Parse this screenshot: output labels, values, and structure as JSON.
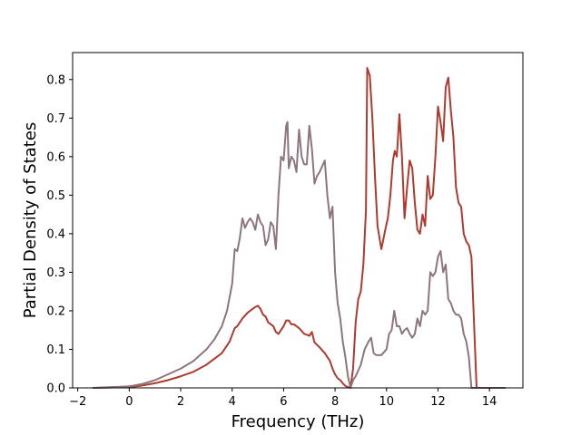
{
  "chart_data": {
    "type": "line",
    "title": "",
    "xlabel": "Frequency (THz)",
    "ylabel": "Partial Density of States",
    "xlim": [
      -2.2,
      15.3
    ],
    "ylim": [
      0.0,
      0.87
    ],
    "xticks": [
      -2,
      0,
      2,
      4,
      6,
      8,
      10,
      12,
      14
    ],
    "yticks": [
      0.0,
      0.1,
      0.2,
      0.3,
      0.4,
      0.5,
      0.6,
      0.7,
      0.8
    ],
    "grid": false,
    "legend": "none",
    "series": [
      {
        "color": "#b03a2e",
        "x": [
          -1.4,
          0.0,
          0.5,
          1.0,
          1.5,
          2.0,
          2.5,
          3.0,
          3.3,
          3.6,
          3.9,
          4.1,
          4.2,
          4.4,
          4.6,
          4.8,
          4.9,
          5.0,
          5.1,
          5.2,
          5.3,
          5.4,
          5.5,
          5.6,
          5.7,
          5.8,
          5.9,
          6.0,
          6.1,
          6.2,
          6.3,
          6.4,
          6.5,
          6.6,
          6.7,
          6.8,
          6.9,
          7.0,
          7.1,
          7.2,
          7.4,
          7.6,
          7.8,
          7.9,
          8.0,
          8.1,
          8.2,
          8.3,
          8.4,
          8.5,
          8.6,
          8.7,
          8.8,
          8.9,
          9.0,
          9.1,
          9.2,
          9.25,
          9.35,
          9.45,
          9.55,
          9.65,
          9.8,
          9.95,
          10.05,
          10.15,
          10.25,
          10.32,
          10.4,
          10.5,
          10.6,
          10.7,
          10.8,
          10.9,
          11.0,
          11.1,
          11.2,
          11.3,
          11.4,
          11.5,
          11.6,
          11.7,
          11.8,
          11.9,
          12.0,
          12.1,
          12.2,
          12.3,
          12.4,
          12.5,
          12.6,
          12.7,
          12.8,
          12.9,
          13.0,
          13.1,
          13.2,
          13.3,
          13.5,
          14.0,
          14.6
        ],
        "y": [
          0.0,
          0.002,
          0.006,
          0.012,
          0.02,
          0.03,
          0.042,
          0.06,
          0.075,
          0.09,
          0.12,
          0.155,
          0.16,
          0.18,
          0.195,
          0.205,
          0.21,
          0.213,
          0.205,
          0.19,
          0.185,
          0.17,
          0.165,
          0.16,
          0.145,
          0.14,
          0.15,
          0.16,
          0.175,
          0.175,
          0.165,
          0.165,
          0.16,
          0.155,
          0.148,
          0.14,
          0.138,
          0.135,
          0.145,
          0.118,
          0.105,
          0.09,
          0.07,
          0.05,
          0.035,
          0.025,
          0.02,
          0.012,
          0.005,
          0.002,
          0.0,
          0.05,
          0.17,
          0.23,
          0.25,
          0.32,
          0.46,
          0.83,
          0.81,
          0.7,
          0.55,
          0.42,
          0.36,
          0.41,
          0.44,
          0.5,
          0.59,
          0.615,
          0.6,
          0.71,
          0.6,
          0.44,
          0.52,
          0.59,
          0.57,
          0.48,
          0.41,
          0.4,
          0.45,
          0.42,
          0.55,
          0.49,
          0.5,
          0.6,
          0.73,
          0.69,
          0.64,
          0.78,
          0.805,
          0.72,
          0.65,
          0.52,
          0.48,
          0.47,
          0.4,
          0.38,
          0.37,
          0.34,
          0.0,
          0.0,
          0.0
        ]
      },
      {
        "color": "#8d7580",
        "x": [
          -1.4,
          0.0,
          0.5,
          1.0,
          1.5,
          2.0,
          2.5,
          3.0,
          3.3,
          3.6,
          3.8,
          4.0,
          4.1,
          4.2,
          4.3,
          4.4,
          4.5,
          4.6,
          4.7,
          4.8,
          4.9,
          5.0,
          5.1,
          5.2,
          5.3,
          5.4,
          5.5,
          5.6,
          5.7,
          5.8,
          5.9,
          6.0,
          6.1,
          6.15,
          6.2,
          6.3,
          6.4,
          6.5,
          6.6,
          6.7,
          6.8,
          6.9,
          7.0,
          7.1,
          7.2,
          7.3,
          7.4,
          7.6,
          7.7,
          7.8,
          7.9,
          8.0,
          8.1,
          8.2,
          8.3,
          8.4,
          8.5,
          8.6,
          8.7,
          8.8,
          9.0,
          9.15,
          9.3,
          9.4,
          9.5,
          9.6,
          9.8,
          10.0,
          10.1,
          10.2,
          10.3,
          10.4,
          10.5,
          10.6,
          10.7,
          10.8,
          10.9,
          11.0,
          11.1,
          11.2,
          11.3,
          11.4,
          11.5,
          11.6,
          11.7,
          11.8,
          11.9,
          12.0,
          12.1,
          12.2,
          12.3,
          12.4,
          12.5,
          12.6,
          12.7,
          12.8,
          12.9,
          13.0,
          13.1,
          13.2,
          13.3,
          13.5,
          14.0,
          14.6
        ],
        "y": [
          0.0,
          0.004,
          0.01,
          0.02,
          0.035,
          0.05,
          0.07,
          0.1,
          0.125,
          0.16,
          0.2,
          0.27,
          0.36,
          0.355,
          0.39,
          0.44,
          0.415,
          0.43,
          0.44,
          0.43,
          0.41,
          0.45,
          0.43,
          0.42,
          0.37,
          0.385,
          0.43,
          0.42,
          0.36,
          0.5,
          0.6,
          0.59,
          0.68,
          0.69,
          0.57,
          0.6,
          0.59,
          0.56,
          0.67,
          0.6,
          0.58,
          0.58,
          0.68,
          0.62,
          0.53,
          0.55,
          0.56,
          0.59,
          0.5,
          0.44,
          0.47,
          0.3,
          0.22,
          0.18,
          0.12,
          0.08,
          0.03,
          0.0,
          0.02,
          0.03,
          0.06,
          0.1,
          0.12,
          0.13,
          0.09,
          0.085,
          0.085,
          0.1,
          0.14,
          0.15,
          0.2,
          0.16,
          0.16,
          0.14,
          0.15,
          0.155,
          0.14,
          0.13,
          0.14,
          0.18,
          0.16,
          0.2,
          0.19,
          0.2,
          0.3,
          0.29,
          0.3,
          0.34,
          0.355,
          0.3,
          0.32,
          0.23,
          0.22,
          0.2,
          0.19,
          0.19,
          0.18,
          0.14,
          0.12,
          0.08,
          0.0,
          0.0,
          0.0,
          0.0
        ]
      }
    ]
  }
}
